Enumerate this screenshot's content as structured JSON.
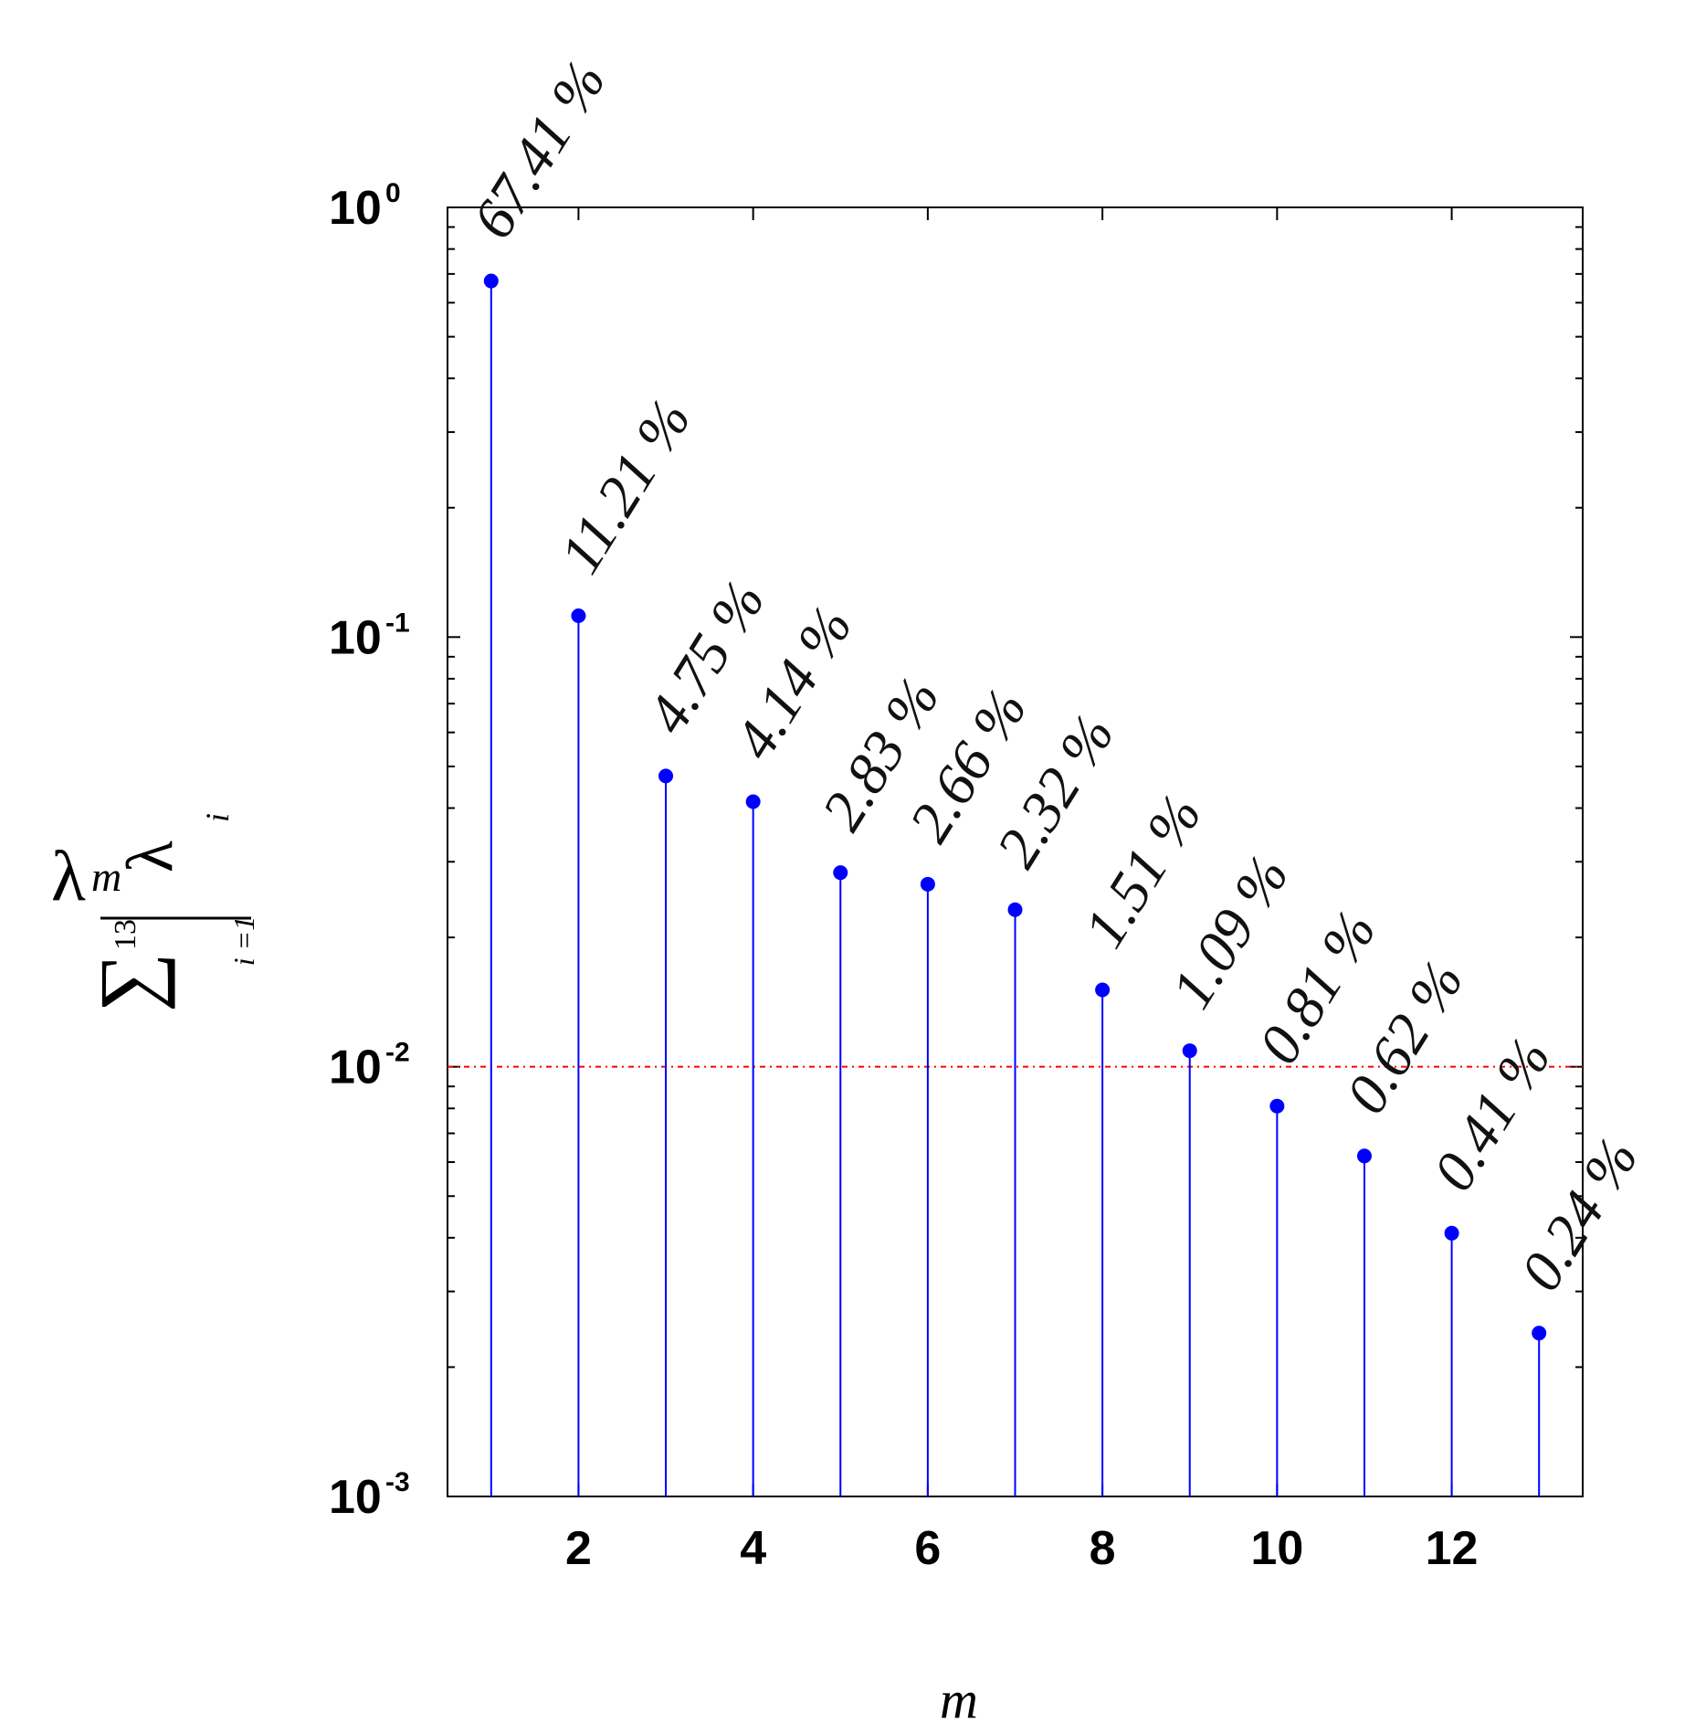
{
  "chart_data": {
    "type": "stem",
    "y_scale": "log",
    "ylim": [
      0.001,
      1
    ],
    "xlim": [
      0.5,
      13.5
    ],
    "x_ticks": [
      2,
      4,
      6,
      8,
      10,
      12
    ],
    "y_ticks": [
      {
        "value": 1,
        "base": "10",
        "exp": "0"
      },
      {
        "value": 0.1,
        "base": "10",
        "exp": "-1"
      },
      {
        "value": 0.01,
        "base": "10",
        "exp": "-2"
      },
      {
        "value": 0.001,
        "base": "10",
        "exp": "-3"
      }
    ],
    "x": [
      1,
      2,
      3,
      4,
      5,
      6,
      7,
      8,
      9,
      10,
      11,
      12,
      13
    ],
    "values": [
      0.6741,
      0.1121,
      0.0475,
      0.0414,
      0.0283,
      0.0266,
      0.0232,
      0.0151,
      0.0109,
      0.0081,
      0.0062,
      0.0041,
      0.0024
    ],
    "labels": [
      "67.41 %",
      "11.21 %",
      "4.75 %",
      "4.14 %",
      "2.83 %",
      "2.66 %",
      "2.32 %",
      "1.51 %",
      "1.09 %",
      "0.81 %",
      "0.62 %",
      "0.41 %",
      "0.24 %"
    ],
    "threshold": 0.01,
    "xlabel": "m",
    "ylabel": {
      "numerator_symbol": "λ",
      "numerator_subscript": "m",
      "sum_symbol": "∑",
      "sum_upper": "13",
      "sum_lower": "i =1",
      "sum_term_symbol": "λ",
      "sum_term_subscript": "i"
    },
    "colors": {
      "stem": "#0000ff",
      "marker": "#0000ff",
      "threshold": "#ff0000",
      "axes": "#000000"
    },
    "grid": false
  }
}
